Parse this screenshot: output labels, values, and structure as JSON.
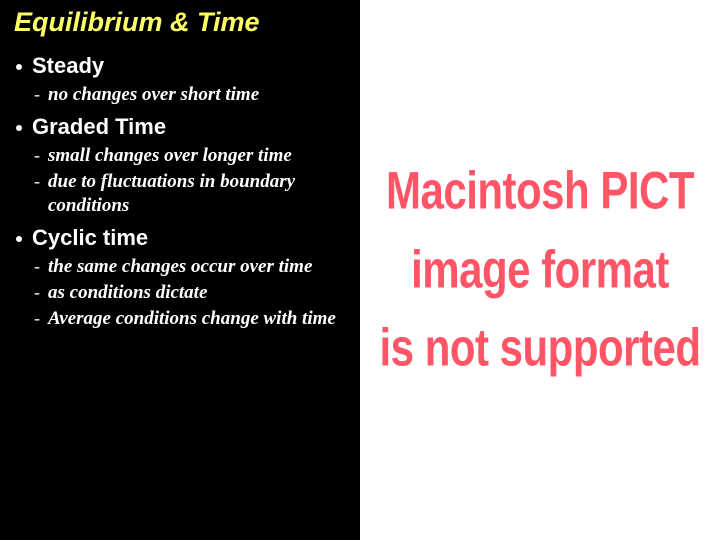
{
  "colors": {
    "background": "#000000",
    "title": "#ffff66",
    "body_text": "#ffffff",
    "right_bg": "#ffffff",
    "pict_text": "#ff5566"
  },
  "title": "Equilibrium & Time",
  "items": [
    {
      "label": "Steady",
      "subs": [
        "no changes over short time"
      ]
    },
    {
      "label": "Graded Time",
      "subs": [
        "small changes  over longer time",
        "due to fluctuations in boundary conditions"
      ]
    },
    {
      "label": "Cyclic time",
      "subs": [
        "the same changes occur over time",
        "as conditions dictate",
        "Average conditions change with time"
      ]
    }
  ],
  "pict_lines": [
    "Macintosh PICT",
    "image format",
    "is not supported"
  ]
}
